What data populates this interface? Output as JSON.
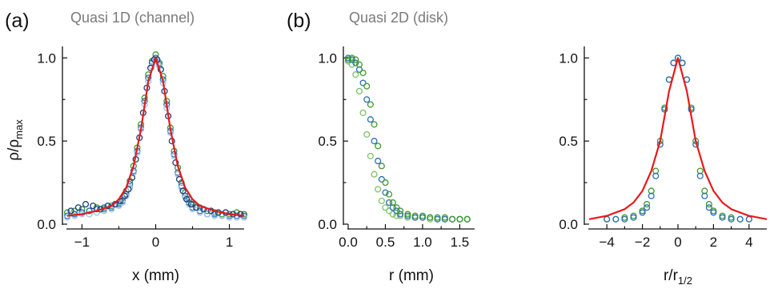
{
  "figure": {
    "panel_letters": [
      "(a)",
      "(b)"
    ],
    "panel_titles": [
      "Quasi 1D (channel)",
      "Quasi 2D (disk)"
    ],
    "y_label_shared": "ρ/ρmax"
  },
  "colors": {
    "fit": "#e8191b",
    "green": "#3d9a2e",
    "blue": "#2a6fb7",
    "lightblue": "#9dc3e6",
    "darkblue": "#1b3f7a"
  },
  "chart_data": [
    {
      "type": "scatter",
      "panel": "(a)",
      "title": "Quasi 1D (channel)",
      "xlabel": "x (mm)",
      "ylabel": "ρ/ρmax",
      "xlim": [
        -1.2,
        1.2
      ],
      "ylim": [
        0,
        1.05
      ],
      "xticks": [
        -1,
        0,
        1
      ],
      "yticks": [
        0.0,
        0.5,
        1.0
      ],
      "xtick_labels": [
        "−1",
        "0",
        "1"
      ],
      "ytick_labels": [
        "0.0",
        "0.5",
        "1.0"
      ],
      "series": [
        {
          "color_key": "green",
          "x": [
            -1.2,
            -1.1,
            -1.0,
            -0.9,
            -0.8,
            -0.7,
            -0.6,
            -0.5,
            -0.45,
            -0.4,
            -0.35,
            -0.3,
            -0.25,
            -0.2,
            -0.15,
            -0.1,
            -0.05,
            0.0,
            0.05,
            0.1,
            0.15,
            0.2,
            0.25,
            0.3,
            0.35,
            0.4,
            0.45,
            0.5,
            0.6,
            0.7,
            0.8,
            0.9,
            1.0,
            1.1,
            1.2
          ],
          "y": [
            0.07,
            0.08,
            0.09,
            0.08,
            0.1,
            0.09,
            0.11,
            0.13,
            0.16,
            0.2,
            0.26,
            0.35,
            0.46,
            0.6,
            0.76,
            0.9,
            0.98,
            1.02,
            0.97,
            0.89,
            0.74,
            0.58,
            0.44,
            0.34,
            0.25,
            0.19,
            0.15,
            0.12,
            0.1,
            0.08,
            0.07,
            0.06,
            0.06,
            0.07,
            0.06
          ]
        },
        {
          "color_key": "blue",
          "x": [
            -1.2,
            -1.1,
            -1.0,
            -0.9,
            -0.8,
            -0.7,
            -0.6,
            -0.5,
            -0.45,
            -0.4,
            -0.35,
            -0.3,
            -0.25,
            -0.2,
            -0.15,
            -0.1,
            -0.05,
            0.0,
            0.05,
            0.1,
            0.15,
            0.2,
            0.25,
            0.3,
            0.35,
            0.4,
            0.45,
            0.5,
            0.6,
            0.7,
            0.8,
            0.9,
            1.0,
            1.1,
            1.2
          ],
          "y": [
            0.05,
            0.06,
            0.07,
            0.08,
            0.09,
            0.1,
            0.1,
            0.12,
            0.14,
            0.18,
            0.24,
            0.32,
            0.44,
            0.58,
            0.74,
            0.88,
            0.97,
            1.0,
            0.96,
            0.87,
            0.72,
            0.56,
            0.42,
            0.31,
            0.23,
            0.17,
            0.13,
            0.1,
            0.08,
            0.06,
            0.06,
            0.05,
            0.05,
            0.05,
            0.05
          ]
        },
        {
          "color_key": "lightblue",
          "x": [
            -1.2,
            -1.1,
            -1.0,
            -0.9,
            -0.8,
            -0.7,
            -0.6,
            -0.5,
            -0.45,
            -0.4,
            -0.35,
            -0.3,
            -0.25,
            -0.2,
            -0.15,
            -0.1,
            -0.05,
            0.0,
            0.05,
            0.1,
            0.15,
            0.2,
            0.25,
            0.3,
            0.35,
            0.4,
            0.45,
            0.5,
            0.6,
            0.7,
            0.8,
            0.9,
            1.0,
            1.1,
            1.2
          ],
          "y": [
            0.04,
            0.05,
            0.06,
            0.06,
            0.07,
            0.08,
            0.09,
            0.11,
            0.13,
            0.17,
            0.22,
            0.31,
            0.43,
            0.57,
            0.72,
            0.86,
            0.95,
            0.99,
            0.95,
            0.85,
            0.7,
            0.55,
            0.41,
            0.3,
            0.22,
            0.16,
            0.12,
            0.09,
            0.07,
            0.06,
            0.05,
            0.05,
            0.04,
            0.04,
            0.04
          ]
        },
        {
          "color_key": "darkblue",
          "x": [
            -1.15,
            -1.05,
            -0.95,
            -0.85,
            -0.75,
            -0.65,
            -0.55,
            -0.48,
            -0.42,
            -0.37,
            -0.32,
            -0.27,
            -0.22,
            -0.17,
            -0.12,
            -0.07,
            -0.02,
            0.02,
            0.07,
            0.12,
            0.17,
            0.22,
            0.27,
            0.32,
            0.37,
            0.42,
            0.48,
            0.55,
            0.65,
            0.75,
            0.85,
            0.95,
            1.05,
            1.15
          ],
          "y": [
            0.08,
            0.1,
            0.12,
            0.11,
            0.09,
            0.11,
            0.12,
            0.14,
            0.17,
            0.21,
            0.28,
            0.39,
            0.52,
            0.67,
            0.82,
            0.94,
            0.99,
            0.99,
            0.93,
            0.8,
            0.65,
            0.5,
            0.37,
            0.27,
            0.2,
            0.15,
            0.12,
            0.1,
            0.09,
            0.08,
            0.07,
            0.07,
            0.06,
            0.06
          ]
        }
      ],
      "fit": {
        "color_key": "fit",
        "x": [
          -1.2,
          -1.0,
          -0.8,
          -0.6,
          -0.5,
          -0.4,
          -0.3,
          -0.2,
          -0.1,
          0.0,
          0.1,
          0.2,
          0.3,
          0.4,
          0.5,
          0.6,
          0.8,
          1.0,
          1.2
        ],
        "y": [
          0.05,
          0.06,
          0.08,
          0.11,
          0.15,
          0.22,
          0.35,
          0.57,
          0.86,
          1.0,
          0.86,
          0.57,
          0.35,
          0.22,
          0.15,
          0.11,
          0.08,
          0.06,
          0.05
        ]
      }
    },
    {
      "type": "scatter",
      "panel": "(b)",
      "title": "Quasi 2D (disk)",
      "xlabel": "r (mm)",
      "ylabel": "",
      "xlim": [
        0.0,
        1.7
      ],
      "ylim": [
        0,
        1.05
      ],
      "xticks": [
        0.0,
        0.5,
        1.0,
        1.5
      ],
      "yticks": [
        0.0,
        0.5,
        1.0
      ],
      "xtick_labels": [
        "0.0",
        "0.5",
        "1.0",
        "1.5"
      ],
      "ytick_labels": [
        "0.0",
        "0.5",
        "1.0"
      ],
      "series": [
        {
          "color_key": "lightgreen",
          "x": [
            0.0,
            0.05,
            0.1,
            0.15,
            0.2,
            0.25,
            0.3,
            0.35,
            0.4,
            0.45,
            0.5,
            0.55,
            0.6,
            0.65,
            0.7,
            0.8,
            0.9,
            1.0,
            1.1,
            1.2,
            1.3,
            1.4,
            1.5,
            1.6
          ],
          "y": [
            0.98,
            0.96,
            0.9,
            0.8,
            0.67,
            0.54,
            0.41,
            0.3,
            0.21,
            0.14,
            0.1,
            0.08,
            0.06,
            0.05,
            0.05,
            0.04,
            0.04,
            0.04,
            0.03,
            0.03,
            0.03,
            0.03,
            0.03,
            0.03
          ]
        },
        {
          "color_key": "blue",
          "x": [
            0.0,
            0.05,
            0.1,
            0.15,
            0.2,
            0.25,
            0.3,
            0.35,
            0.4,
            0.45,
            0.5,
            0.55,
            0.6,
            0.65,
            0.7,
            0.8,
            0.9,
            1.0,
            1.1,
            1.2,
            1.3,
            1.4,
            1.5,
            1.6
          ],
          "y": [
            1.0,
            0.99,
            0.97,
            0.93,
            0.85,
            0.75,
            0.63,
            0.5,
            0.38,
            0.27,
            0.19,
            0.13,
            0.1,
            0.08,
            0.06,
            0.05,
            0.04,
            0.04,
            0.04,
            0.03,
            0.03,
            0.03,
            0.03,
            0.03
          ]
        },
        {
          "color_key": "green",
          "x": [
            0.0,
            0.05,
            0.1,
            0.15,
            0.2,
            0.25,
            0.3,
            0.35,
            0.4,
            0.45,
            0.5,
            0.55,
            0.6,
            0.65,
            0.7,
            0.8,
            0.9,
            1.0,
            1.1,
            1.2,
            1.3,
            1.4,
            1.5,
            1.6
          ],
          "y": [
            0.99,
            1.0,
            0.99,
            0.96,
            0.91,
            0.83,
            0.72,
            0.6,
            0.47,
            0.35,
            0.25,
            0.18,
            0.13,
            0.1,
            0.08,
            0.06,
            0.05,
            0.05,
            0.04,
            0.04,
            0.04,
            0.03,
            0.03,
            0.03
          ]
        }
      ]
    },
    {
      "type": "scatter",
      "panel": "(b) right",
      "title": "",
      "xlabel": "r/r1/2",
      "ylabel": "",
      "xlim": [
        -5,
        5
      ],
      "ylim": [
        0,
        1.05
      ],
      "xticks": [
        -4,
        -2,
        0,
        2,
        4
      ],
      "yticks": [
        0.0,
        0.5,
        1.0
      ],
      "xtick_labels": [
        "−4",
        "−2",
        "0",
        "2",
        "4"
      ],
      "ytick_labels": [
        "0.0",
        "0.5",
        "1.0"
      ],
      "series": [
        {
          "color_key": "green",
          "x": [
            -4.0,
            -3.5,
            -3.0,
            -2.5,
            -2.0,
            -1.75,
            -1.5,
            -1.25,
            -1.0,
            -0.75,
            -0.5,
            -0.25,
            0.0,
            0.25,
            0.5,
            0.75,
            1.0,
            1.25,
            1.5,
            1.75,
            2.0,
            2.5,
            3.0,
            3.5,
            4.0
          ],
          "y": [
            0.03,
            0.03,
            0.04,
            0.05,
            0.08,
            0.12,
            0.2,
            0.32,
            0.5,
            0.7,
            0.87,
            0.97,
            1.0,
            0.97,
            0.87,
            0.7,
            0.5,
            0.32,
            0.2,
            0.12,
            0.08,
            0.05,
            0.04,
            0.03,
            0.03
          ]
        },
        {
          "color_key": "blue",
          "x": [
            -4.0,
            -3.5,
            -3.0,
            -2.5,
            -2.0,
            -1.75,
            -1.5,
            -1.25,
            -1.0,
            -0.75,
            -0.5,
            -0.25,
            0.0,
            0.25,
            0.5,
            0.75,
            1.0,
            1.25,
            1.5,
            1.75,
            2.0,
            2.5,
            3.0,
            3.5,
            4.0
          ],
          "y": [
            0.03,
            0.03,
            0.03,
            0.04,
            0.07,
            0.1,
            0.17,
            0.29,
            0.48,
            0.69,
            0.87,
            0.97,
            1.0,
            0.97,
            0.87,
            0.69,
            0.48,
            0.29,
            0.17,
            0.1,
            0.07,
            0.04,
            0.03,
            0.03,
            0.03
          ]
        }
      ],
      "fit": {
        "color_key": "fit",
        "x": [
          -5,
          -4,
          -3,
          -2.5,
          -2,
          -1.5,
          -1,
          -0.5,
          0,
          0.5,
          1,
          1.5,
          2,
          2.5,
          3,
          4,
          5
        ],
        "y": [
          0.03,
          0.05,
          0.09,
          0.13,
          0.2,
          0.32,
          0.5,
          0.8,
          1.0,
          0.8,
          0.5,
          0.32,
          0.2,
          0.13,
          0.09,
          0.05,
          0.03
        ]
      }
    }
  ]
}
